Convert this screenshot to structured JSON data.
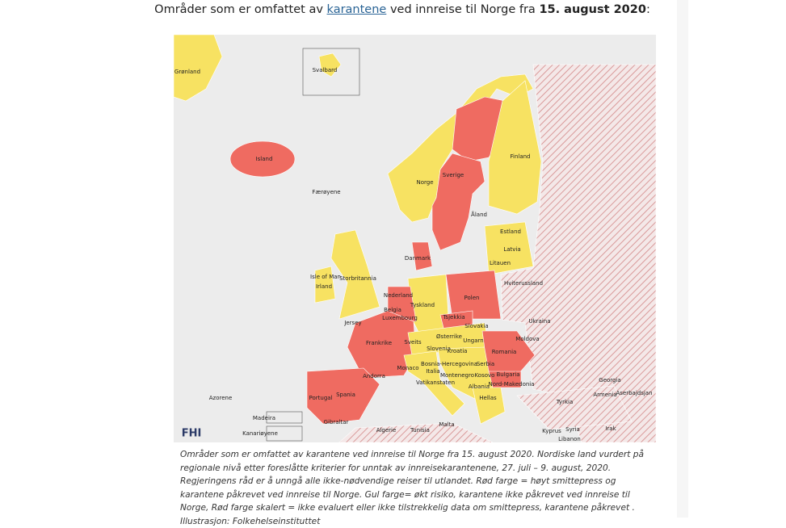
{
  "heading": {
    "before": "Områder som er omfattet av",
    "link": "karantene",
    "middle": "ved innreise til Norge fra",
    "date": "15. august 2020",
    "after": ":"
  },
  "map": {
    "logo": "FHI",
    "labels": [
      "Grønland",
      "Svalbard",
      "Island",
      "Færøyene",
      "Norge",
      "Sverige",
      "Finland",
      "Åland",
      "Estland",
      "Latvia",
      "Litauen",
      "Danmark",
      "Isle of Man",
      "Storbritannia",
      "Irland",
      "Nederland",
      "Belgia",
      "Luxembourg",
      "Tyskland",
      "Polen",
      "Hviterussland",
      "Jersey",
      "Tsjekkia",
      "Slovakia",
      "Ukraina",
      "Østerrike",
      "Ungarn",
      "Moldova",
      "Frankrike",
      "Sveits",
      "Slovenia",
      "Kroatia",
      "Romania",
      "Bosnia-Hercegovina",
      "Serbia",
      "Italia",
      "Monaco",
      "Andorra",
      "Montenegro",
      "Kosovo",
      "Bulgaria",
      "Vatikanstaten",
      "Nord-Makedonia",
      "Albania",
      "Georgia",
      "Armenia",
      "Aserbajdsjan",
      "Azorene",
      "Portugal",
      "Spania",
      "Hellas",
      "Tyrkia",
      "Madeira",
      "Gibraltar",
      "Algerie",
      "Tunisia",
      "Malta",
      "Irak",
      "Syria",
      "Kyprus",
      "Kanariøyene",
      "Libanon"
    ]
  },
  "caption": "Områder som er omfattet av karantene ved innreise til Norge fra 15. august 2020. Nordiske land vurdert på regionale nivå etter foreslåtte kriterier for unntak av innreisekarantenene, 27. juli – 9. august, 2020. Regjeringens råd er å unngå alle ikke-nødvendige reiser til utlandet. Rød farge = høyt smittepress og karantene påkrevet ved innreise til Norge. Gul farge= økt risiko, karantene ikke påkrevet ved innreise til Norge, Rød farge skalert = ikke evaluert eller ikke tilstrekkelig data om smittepress, karantene påkrevet . Illustrasjon: Folkehelseinstituttet"
}
